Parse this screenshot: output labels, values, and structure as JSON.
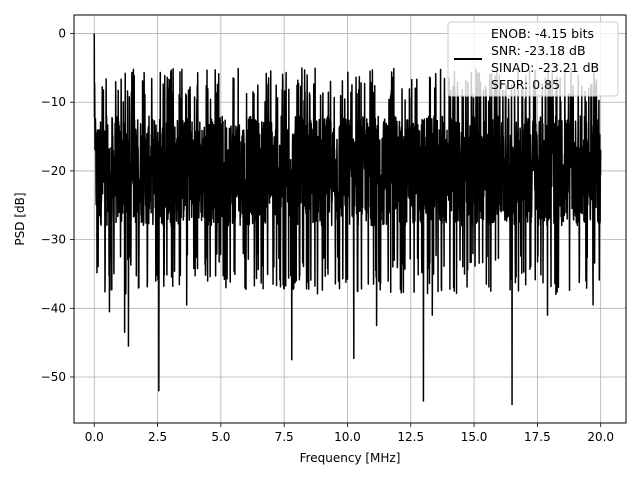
{
  "chart_data": {
    "type": "line",
    "title": "",
    "xlabel": "Frequency [MHz]",
    "ylabel": "PSD [dB]",
    "xlim": [
      -0.8,
      21.0
    ],
    "ylim": [
      -56.7,
      2.7
    ],
    "x_ticks": [
      0.0,
      2.5,
      5.0,
      7.5,
      10.0,
      12.5,
      15.0,
      17.5,
      20.0
    ],
    "x_tick_labels": [
      "0.0",
      "2.5",
      "5.0",
      "7.5",
      "10.0",
      "12.5",
      "15.0",
      "17.5",
      "20.0"
    ],
    "y_ticks": [
      0,
      -10,
      -20,
      -30,
      -40,
      -50
    ],
    "y_tick_labels": [
      "0",
      "−10",
      "−20",
      "−30",
      "−40",
      "−50"
    ],
    "grid": true,
    "legend_position": "top-right",
    "series": [
      {
        "name": "ENOB: -4.15 bits\nSNR: -23.18 dB\nSINAD: -23.21 dB\nSFDR: 0.85",
        "color": "#000000",
        "x_range": [
          0,
          20
        ],
        "baseline_db": -20,
        "band_top_db": -12,
        "band_bottom_db": -28,
        "peak_top_db": -5,
        "start_value_db": 0,
        "dips": [
          {
            "x": 0.6,
            "y": -40.5
          },
          {
            "x": 1.35,
            "y": -45.5
          },
          {
            "x": 1.2,
            "y": -43.5
          },
          {
            "x": 2.55,
            "y": -52.0
          },
          {
            "x": 3.65,
            "y": -39.5
          },
          {
            "x": 7.8,
            "y": -47.5
          },
          {
            "x": 10.25,
            "y": -47.3
          },
          {
            "x": 11.15,
            "y": -42.5
          },
          {
            "x": 13.0,
            "y": -53.5
          },
          {
            "x": 13.35,
            "y": -41.0
          },
          {
            "x": 16.5,
            "y": -54.0
          },
          {
            "x": 17.9,
            "y": -41.0
          },
          {
            "x": 19.7,
            "y": -39.5
          }
        ]
      }
    ],
    "legend_lines": [
      "ENOB: -4.15 bits",
      "SNR: -23.18 dB",
      "SINAD: -23.21 dB",
      "SFDR: 0.85"
    ]
  }
}
